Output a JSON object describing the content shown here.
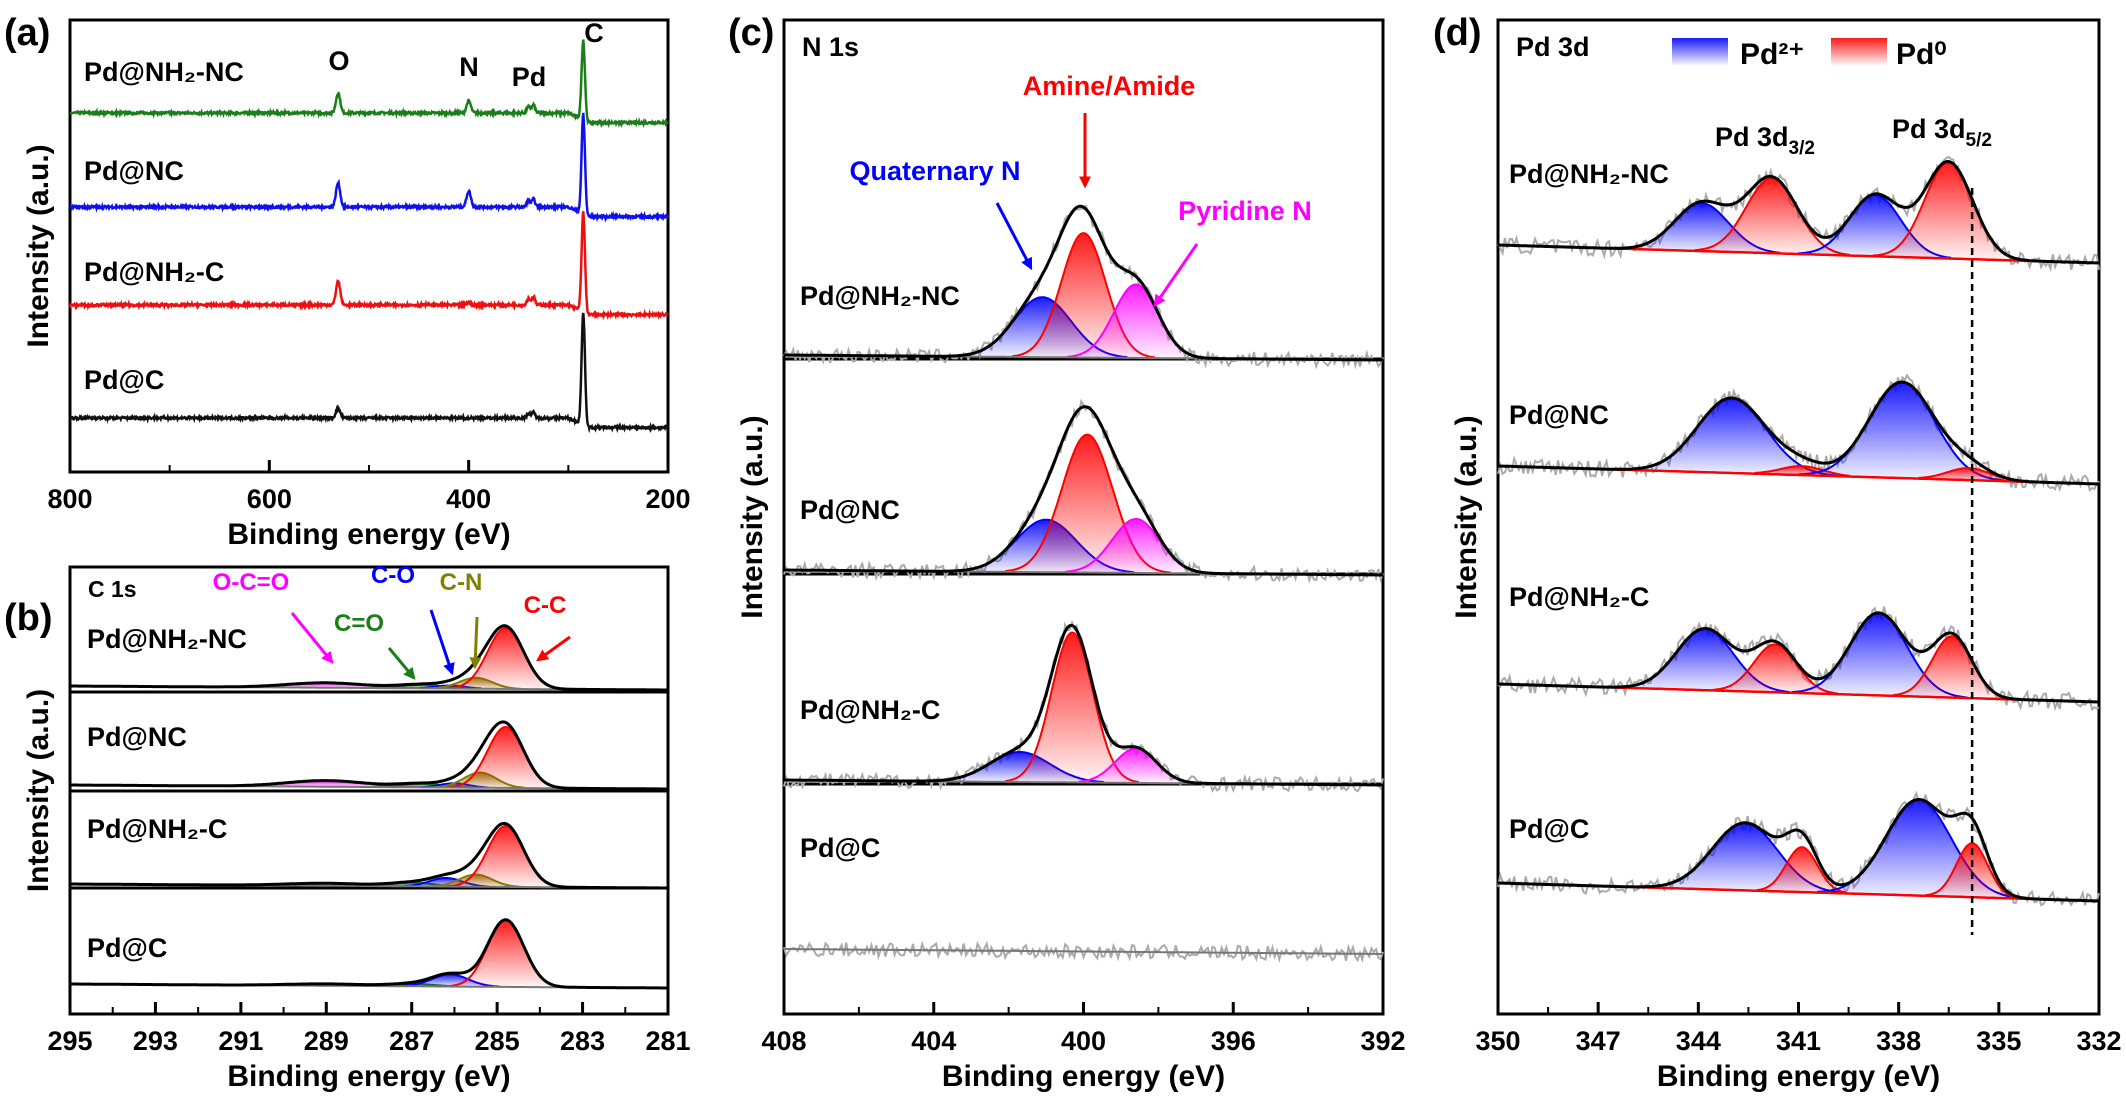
{
  "chart_data": [
    {
      "panel": "(a)",
      "type": "line",
      "xlabel": "Binding energy (eV)",
      "ylabel": "Intensity (a.u.)",
      "xlim": [
        800,
        200
      ],
      "xticks": [
        800,
        600,
        400,
        200
      ],
      "minor_step": 100,
      "annotations": [
        {
          "text": "O",
          "x": 531
        },
        {
          "text": "N",
          "x": 400
        },
        {
          "text": "Pd",
          "x": 338
        },
        {
          "text": "C",
          "x": 285
        }
      ],
      "series": [
        {
          "name": "Pd@NH₂-NC",
          "color": "#1a7f1a",
          "peaks": [
            {
              "center": 531,
              "amp": 0.25,
              "fwhm": 5
            },
            {
              "center": 400,
              "amp": 0.15,
              "fwhm": 5
            },
            {
              "center": 340,
              "amp": 0.08,
              "fwhm": 4
            },
            {
              "center": 335,
              "amp": 0.1,
              "fwhm": 4
            },
            {
              "center": 285,
              "amp": 1.0,
              "fwhm": 4
            }
          ]
        },
        {
          "name": "Pd@NC",
          "color": "#1010ee",
          "peaks": [
            {
              "center": 531,
              "amp": 0.3,
              "fwhm": 5
            },
            {
              "center": 400,
              "amp": 0.2,
              "fwhm": 5
            },
            {
              "center": 340,
              "amp": 0.08,
              "fwhm": 4
            },
            {
              "center": 335,
              "amp": 0.1,
              "fwhm": 4
            },
            {
              "center": 285,
              "amp": 1.25,
              "fwhm": 4
            }
          ]
        },
        {
          "name": "Pd@NH₂-C",
          "color": "#ee1010",
          "peaks": [
            {
              "center": 531,
              "amp": 0.3,
              "fwhm": 5
            },
            {
              "center": 400,
              "amp": 0.03,
              "fwhm": 5
            },
            {
              "center": 340,
              "amp": 0.08,
              "fwhm": 4
            },
            {
              "center": 335,
              "amp": 0.1,
              "fwhm": 4
            },
            {
              "center": 285,
              "amp": 1.25,
              "fwhm": 4
            }
          ]
        },
        {
          "name": "Pd@C",
          "color": "#111111",
          "peaks": [
            {
              "center": 531,
              "amp": 0.12,
              "fwhm": 5
            },
            {
              "center": 340,
              "amp": 0.06,
              "fwhm": 4
            },
            {
              "center": 335,
              "amp": 0.07,
              "fwhm": 4
            },
            {
              "center": 285,
              "amp": 1.4,
              "fwhm": 4
            }
          ]
        }
      ]
    },
    {
      "panel": "(b)",
      "type": "line",
      "title": "C 1s",
      "xlabel": "Binding energy (eV)",
      "ylabel": "Intensity (a.u.)",
      "xlim": [
        295,
        281
      ],
      "xticks": [
        295,
        293,
        291,
        289,
        287,
        285,
        283,
        281
      ],
      "minor_step": 1,
      "components": [
        {
          "label": "O-C=O",
          "color": "#ff00ff"
        },
        {
          "label": "C=O",
          "color": "#1a7f1a"
        },
        {
          "label": "C-O",
          "color": "#0000ff"
        },
        {
          "label": "C-N",
          "color": "#808000"
        },
        {
          "label": "C-C",
          "color": "#ff0000"
        }
      ],
      "series": [
        {
          "name": "Pd@NH₂-NC",
          "peaks": [
            {
              "component": 0,
              "center": 289.0,
              "amp": 0.08,
              "fwhm": 2.2
            },
            {
              "component": 1,
              "center": 286.8,
              "amp": 0.06,
              "fwhm": 1.2
            },
            {
              "component": 2,
              "center": 286.1,
              "amp": 0.05,
              "fwhm": 0.8
            },
            {
              "component": 3,
              "center": 285.5,
              "amp": 0.18,
              "fwhm": 0.9
            },
            {
              "component": 4,
              "center": 284.8,
              "amp": 1.0,
              "fwhm": 1.0
            }
          ]
        },
        {
          "name": "Pd@NC",
          "peaks": [
            {
              "component": 0,
              "center": 289.0,
              "amp": 0.1,
              "fwhm": 2.2
            },
            {
              "component": 1,
              "center": 286.8,
              "amp": 0.06,
              "fwhm": 1.2
            },
            {
              "component": 2,
              "center": 286.0,
              "amp": 0.07,
              "fwhm": 0.8
            },
            {
              "component": 3,
              "center": 285.4,
              "amp": 0.25,
              "fwhm": 0.9
            },
            {
              "component": 4,
              "center": 284.8,
              "amp": 1.0,
              "fwhm": 1.0
            }
          ]
        },
        {
          "name": "Pd@NH₂-C",
          "peaks": [
            {
              "component": 0,
              "center": 289.0,
              "amp": 0.04,
              "fwhm": 2.2
            },
            {
              "component": 1,
              "center": 287.0,
              "amp": 0.06,
              "fwhm": 1.2
            },
            {
              "component": 2,
              "center": 286.2,
              "amp": 0.14,
              "fwhm": 0.9
            },
            {
              "component": 3,
              "center": 285.5,
              "amp": 0.2,
              "fwhm": 0.9
            },
            {
              "component": 4,
              "center": 284.8,
              "amp": 1.0,
              "fwhm": 1.0
            }
          ]
        },
        {
          "name": "Pd@C",
          "peaks": [
            {
              "component": 0,
              "center": 289.0,
              "amp": 0.03,
              "fwhm": 2.2
            },
            {
              "component": 1,
              "center": 287.0,
              "amp": 0.04,
              "fwhm": 1.2
            },
            {
              "component": 2,
              "center": 286.1,
              "amp": 0.2,
              "fwhm": 1.0
            },
            {
              "component": 4,
              "center": 284.8,
              "amp": 1.1,
              "fwhm": 1.0
            }
          ]
        }
      ]
    },
    {
      "panel": "(c)",
      "type": "line",
      "title": "N 1s",
      "xlabel": "Binding energy (eV)",
      "ylabel": "Intensity (a.u.)",
      "xlim": [
        408,
        392
      ],
      "xticks": [
        408,
        404,
        400,
        396,
        392
      ],
      "minor_step": 2,
      "components": [
        {
          "label": "Quaternary N",
          "color": "#0000ff"
        },
        {
          "label": "Amine/Amide",
          "color": "#ff0000"
        },
        {
          "label": "Pyridine N",
          "color": "#ff00ff"
        }
      ],
      "series": [
        {
          "name": "Pd@NH₂-NC",
          "peaks": [
            {
              "component": 0,
              "center": 401.1,
              "amp": 0.4,
              "fwhm": 1.8
            },
            {
              "component": 1,
              "center": 400.0,
              "amp": 0.83,
              "fwhm": 1.4
            },
            {
              "component": 2,
              "center": 398.6,
              "amp": 0.49,
              "fwhm": 1.4
            }
          ]
        },
        {
          "name": "Pd@NC",
          "peaks": [
            {
              "component": 0,
              "center": 401.0,
              "amp": 0.35,
              "fwhm": 1.9
            },
            {
              "component": 1,
              "center": 399.9,
              "amp": 0.92,
              "fwhm": 1.6
            },
            {
              "component": 2,
              "center": 398.6,
              "amp": 0.36,
              "fwhm": 1.5
            }
          ]
        },
        {
          "name": "Pd@NH₂-C",
          "peaks": [
            {
              "component": 0,
              "center": 401.7,
              "amp": 0.2,
              "fwhm": 1.9
            },
            {
              "component": 1,
              "center": 400.3,
              "amp": 1.0,
              "fwhm": 1.3
            },
            {
              "component": 2,
              "center": 398.6,
              "amp": 0.23,
              "fwhm": 1.3
            }
          ]
        },
        {
          "name": "Pd@C",
          "peaks": []
        }
      ]
    },
    {
      "panel": "(d)",
      "type": "line",
      "title": "Pd 3d",
      "xlabel": "Binding energy (eV)",
      "ylabel": "Intensity (a.u.)",
      "xlim": [
        350,
        332
      ],
      "xticks": [
        350,
        347,
        344,
        341,
        338,
        335,
        332
      ],
      "minor_step": 1.5,
      "legend": [
        {
          "label": "Pd²⁺",
          "color": "#0000ff"
        },
        {
          "label": "Pd⁰",
          "color": "#ff0000"
        }
      ],
      "legend_position": "top",
      "peak_labels": [
        {
          "main": "Pd 3d",
          "sub": "3/2"
        },
        {
          "main": "Pd 3d",
          "sub": "5/2"
        }
      ],
      "reference_line": 335.8,
      "series": [
        {
          "name": "Pd@NH₂-NC",
          "peaks": [
            {
              "component": 0,
              "center": 343.9,
              "amp": 0.32,
              "fwhm": 1.9
            },
            {
              "component": 1,
              "center": 341.8,
              "amp": 0.5,
              "fwhm": 1.8
            },
            {
              "component": 0,
              "center": 338.7,
              "amp": 0.41,
              "fwhm": 1.8
            },
            {
              "component": 1,
              "center": 336.5,
              "amp": 0.64,
              "fwhm": 1.7
            }
          ]
        },
        {
          "name": "Pd@NC",
          "peaks": [
            {
              "component": 0,
              "center": 343.0,
              "amp": 0.5,
              "fwhm": 2.4
            },
            {
              "component": 1,
              "center": 340.9,
              "amp": 0.06,
              "fwhm": 1.5
            },
            {
              "component": 0,
              "center": 337.9,
              "amp": 0.64,
              "fwhm": 2.3
            },
            {
              "component": 1,
              "center": 335.9,
              "amp": 0.08,
              "fwhm": 1.5
            }
          ]
        },
        {
          "name": "Pd@NH₂-C",
          "peaks": [
            {
              "component": 0,
              "center": 343.8,
              "amp": 0.41,
              "fwhm": 2.0
            },
            {
              "component": 1,
              "center": 341.7,
              "amp": 0.32,
              "fwhm": 1.5
            },
            {
              "component": 0,
              "center": 338.6,
              "amp": 0.55,
              "fwhm": 2.0
            },
            {
              "component": 1,
              "center": 336.4,
              "amp": 0.41,
              "fwhm": 1.4
            }
          ]
        },
        {
          "name": "Pd@C",
          "peaks": [
            {
              "component": 0,
              "center": 342.6,
              "amp": 0.45,
              "fwhm": 2.3
            },
            {
              "component": 1,
              "center": 340.9,
              "amp": 0.3,
              "fwhm": 1.1
            },
            {
              "component": 0,
              "center": 337.4,
              "amp": 0.64,
              "fwhm": 2.3
            },
            {
              "component": 1,
              "center": 335.8,
              "amp": 0.36,
              "fwhm": 1.1
            }
          ]
        }
      ]
    }
  ]
}
